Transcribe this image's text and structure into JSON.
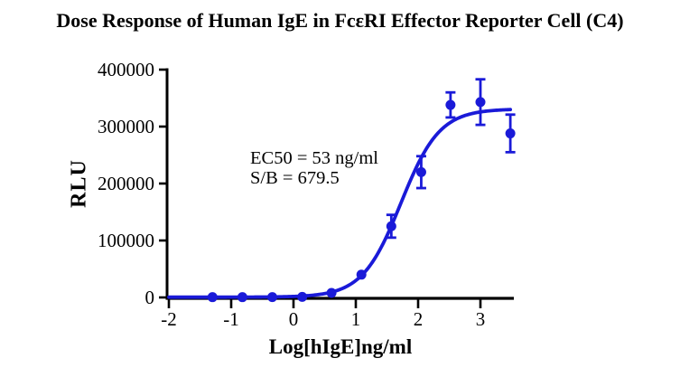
{
  "chart_data": {
    "type": "scatter",
    "title": "Dose Response of Human IgE in FcεRI Effector Reporter Cell (C4)",
    "xlabel": "Log[hIgE]ng/ml",
    "ylabel": "RLU",
    "x_ticks": [
      -2,
      -1,
      0,
      1,
      2,
      3
    ],
    "y_ticks": [
      0,
      100000,
      200000,
      300000,
      400000
    ],
    "xlim": [
      -2,
      3.54
    ],
    "ylim": [
      0,
      400000
    ],
    "grid": false,
    "legend": false,
    "points": [
      {
        "x": -1.3,
        "y": 500,
        "err": 0
      },
      {
        "x": -0.82,
        "y": 500,
        "err": 0
      },
      {
        "x": -0.34,
        "y": 600,
        "err": 0
      },
      {
        "x": 0.14,
        "y": 1000,
        "err": 0
      },
      {
        "x": 0.61,
        "y": 8000,
        "err": 0
      },
      {
        "x": 1.09,
        "y": 40000,
        "err": 0
      },
      {
        "x": 1.57,
        "y": 125000,
        "err": 20000
      },
      {
        "x": 2.05,
        "y": 220000,
        "err": 28000
      },
      {
        "x": 2.52,
        "y": 338000,
        "err": 22000
      },
      {
        "x": 3.0,
        "y": 343000,
        "err": 40000
      },
      {
        "x": 3.48,
        "y": 288000,
        "err": 33000
      }
    ],
    "fit": {
      "model": "4PL-sigmoid",
      "bottom": 490,
      "top": 331000,
      "log_ec50": 1.7243,
      "hill": 1.4,
      "x_start": -2,
      "x_end": 3.49
    },
    "annotation": {
      "ec50": "EC50 = 53 ng/ml",
      "sb": "S/B = 679.5"
    },
    "colors": {
      "curve": "#1a1ad8",
      "axis": "#000000",
      "text": "#000000"
    }
  }
}
